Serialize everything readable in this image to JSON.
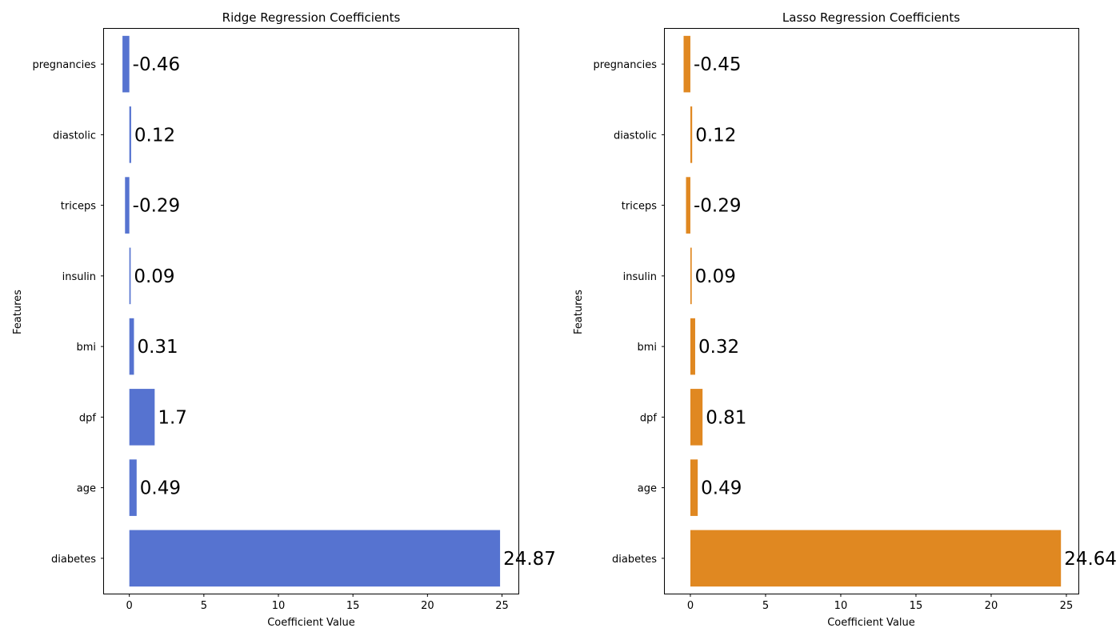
{
  "chart_data": [
    {
      "type": "bar",
      "orientation": "horizontal",
      "title": "Ridge Regression Coefficients",
      "xlabel": "Coefficient Value",
      "ylabel": "Features",
      "xlim": [
        -1.7,
        26.1
      ],
      "xticks": [
        0,
        5,
        10,
        15,
        20,
        25
      ],
      "grid": false,
      "color": "#5673d0",
      "categories": [
        "pregnancies",
        "diastolic",
        "triceps",
        "insulin",
        "bmi",
        "dpf",
        "age",
        "diabetes"
      ],
      "values": [
        -0.46,
        0.12,
        -0.29,
        0.09,
        0.31,
        1.7,
        0.49,
        24.87
      ],
      "labels": [
        "-0.46",
        "0.12",
        "-0.29",
        "0.09",
        "0.31",
        "1.7",
        "0.49",
        "24.87"
      ]
    },
    {
      "type": "bar",
      "orientation": "horizontal",
      "title": "Lasso Regression Coefficients",
      "xlabel": "Coefficient Value",
      "ylabel": "Features",
      "xlim": [
        -1.7,
        25.8
      ],
      "xticks": [
        0,
        5,
        10,
        15,
        20,
        25
      ],
      "grid": false,
      "color": "#e08821",
      "categories": [
        "pregnancies",
        "diastolic",
        "triceps",
        "insulin",
        "bmi",
        "dpf",
        "age",
        "diabetes"
      ],
      "values": [
        -0.45,
        0.12,
        -0.29,
        0.09,
        0.32,
        0.81,
        0.49,
        24.64
      ],
      "labels": [
        "-0.45",
        "0.12",
        "-0.29",
        "0.09",
        "0.32",
        "0.81",
        "0.49",
        "24.64"
      ]
    }
  ]
}
